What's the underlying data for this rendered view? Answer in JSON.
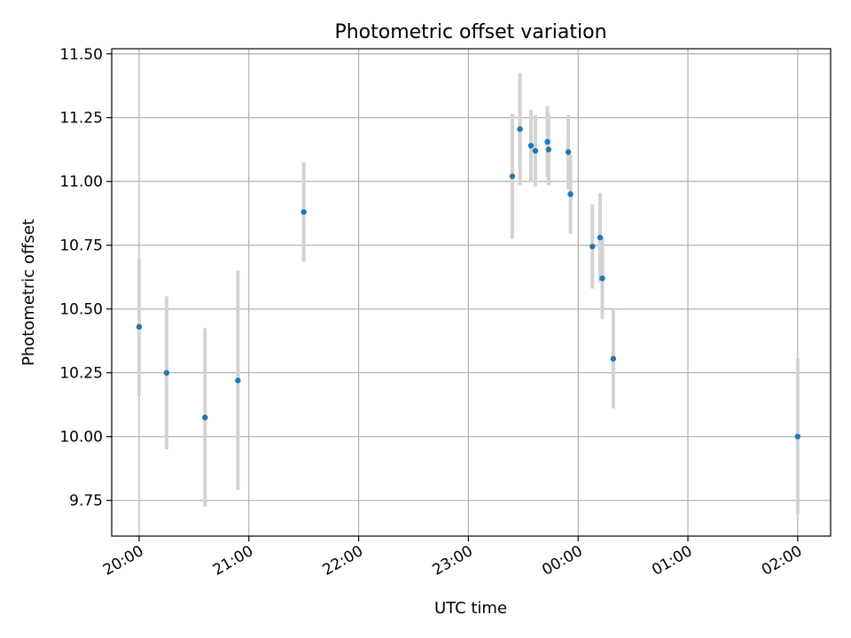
{
  "chart_data": {
    "type": "scatter",
    "title": "Photometric offset variation",
    "xlabel": "UTC time",
    "ylabel": "Photometric offset",
    "x_unit": "hours since 00:00 (negative = previous day)",
    "xlim": [
      -4.25,
      2.3
    ],
    "ylim": [
      9.61,
      11.52
    ],
    "grid": true,
    "x_ticks": [
      {
        "value": -4,
        "label": "20:00"
      },
      {
        "value": -3,
        "label": "21:00"
      },
      {
        "value": -2,
        "label": "22:00"
      },
      {
        "value": -1,
        "label": "23:00"
      },
      {
        "value": 0,
        "label": "00:00"
      },
      {
        "value": 1,
        "label": "01:00"
      },
      {
        "value": 2,
        "label": "02:00"
      }
    ],
    "y_ticks": [
      {
        "value": 9.75,
        "label": "9.75"
      },
      {
        "value": 10.0,
        "label": "10.00"
      },
      {
        "value": 10.25,
        "label": "10.25"
      },
      {
        "value": 10.5,
        "label": "10.50"
      },
      {
        "value": 10.75,
        "label": "10.75"
      },
      {
        "value": 11.0,
        "label": "11.00"
      },
      {
        "value": 11.25,
        "label": "11.25"
      },
      {
        "value": 11.5,
        "label": "11.50"
      }
    ],
    "colors": {
      "point": "#1f77b4",
      "errorbar": "#d3d3d3",
      "grid": "#b0b0b0",
      "axis": "#000000"
    },
    "points": [
      {
        "x": -4.0,
        "y": 10.43,
        "err": 0.27
      },
      {
        "x": -3.75,
        "y": 10.25,
        "err": 0.3
      },
      {
        "x": -3.4,
        "y": 10.075,
        "err": 0.35
      },
      {
        "x": -3.1,
        "y": 10.22,
        "err": 0.43
      },
      {
        "x": -2.5,
        "y": 10.88,
        "err": 0.195
      },
      {
        "x": -0.6,
        "y": 11.02,
        "err": 0.245
      },
      {
        "x": -0.53,
        "y": 11.205,
        "err": 0.22
      },
      {
        "x": -0.43,
        "y": 11.14,
        "err": 0.14
      },
      {
        "x": -0.39,
        "y": 11.12,
        "err": 0.14
      },
      {
        "x": -0.28,
        "y": 11.155,
        "err": 0.14
      },
      {
        "x": -0.27,
        "y": 11.125,
        "err": 0.14
      },
      {
        "x": -0.09,
        "y": 11.115,
        "err": 0.145
      },
      {
        "x": -0.07,
        "y": 10.95,
        "err": 0.155
      },
      {
        "x": 0.13,
        "y": 10.745,
        "err": 0.165
      },
      {
        "x": 0.2,
        "y": 10.78,
        "err": 0.175
      },
      {
        "x": 0.22,
        "y": 10.62,
        "err": 0.16
      },
      {
        "x": 0.32,
        "y": 10.305,
        "err": 0.195
      },
      {
        "x": 2.0,
        "y": 10.0,
        "err": 0.305
      }
    ]
  }
}
